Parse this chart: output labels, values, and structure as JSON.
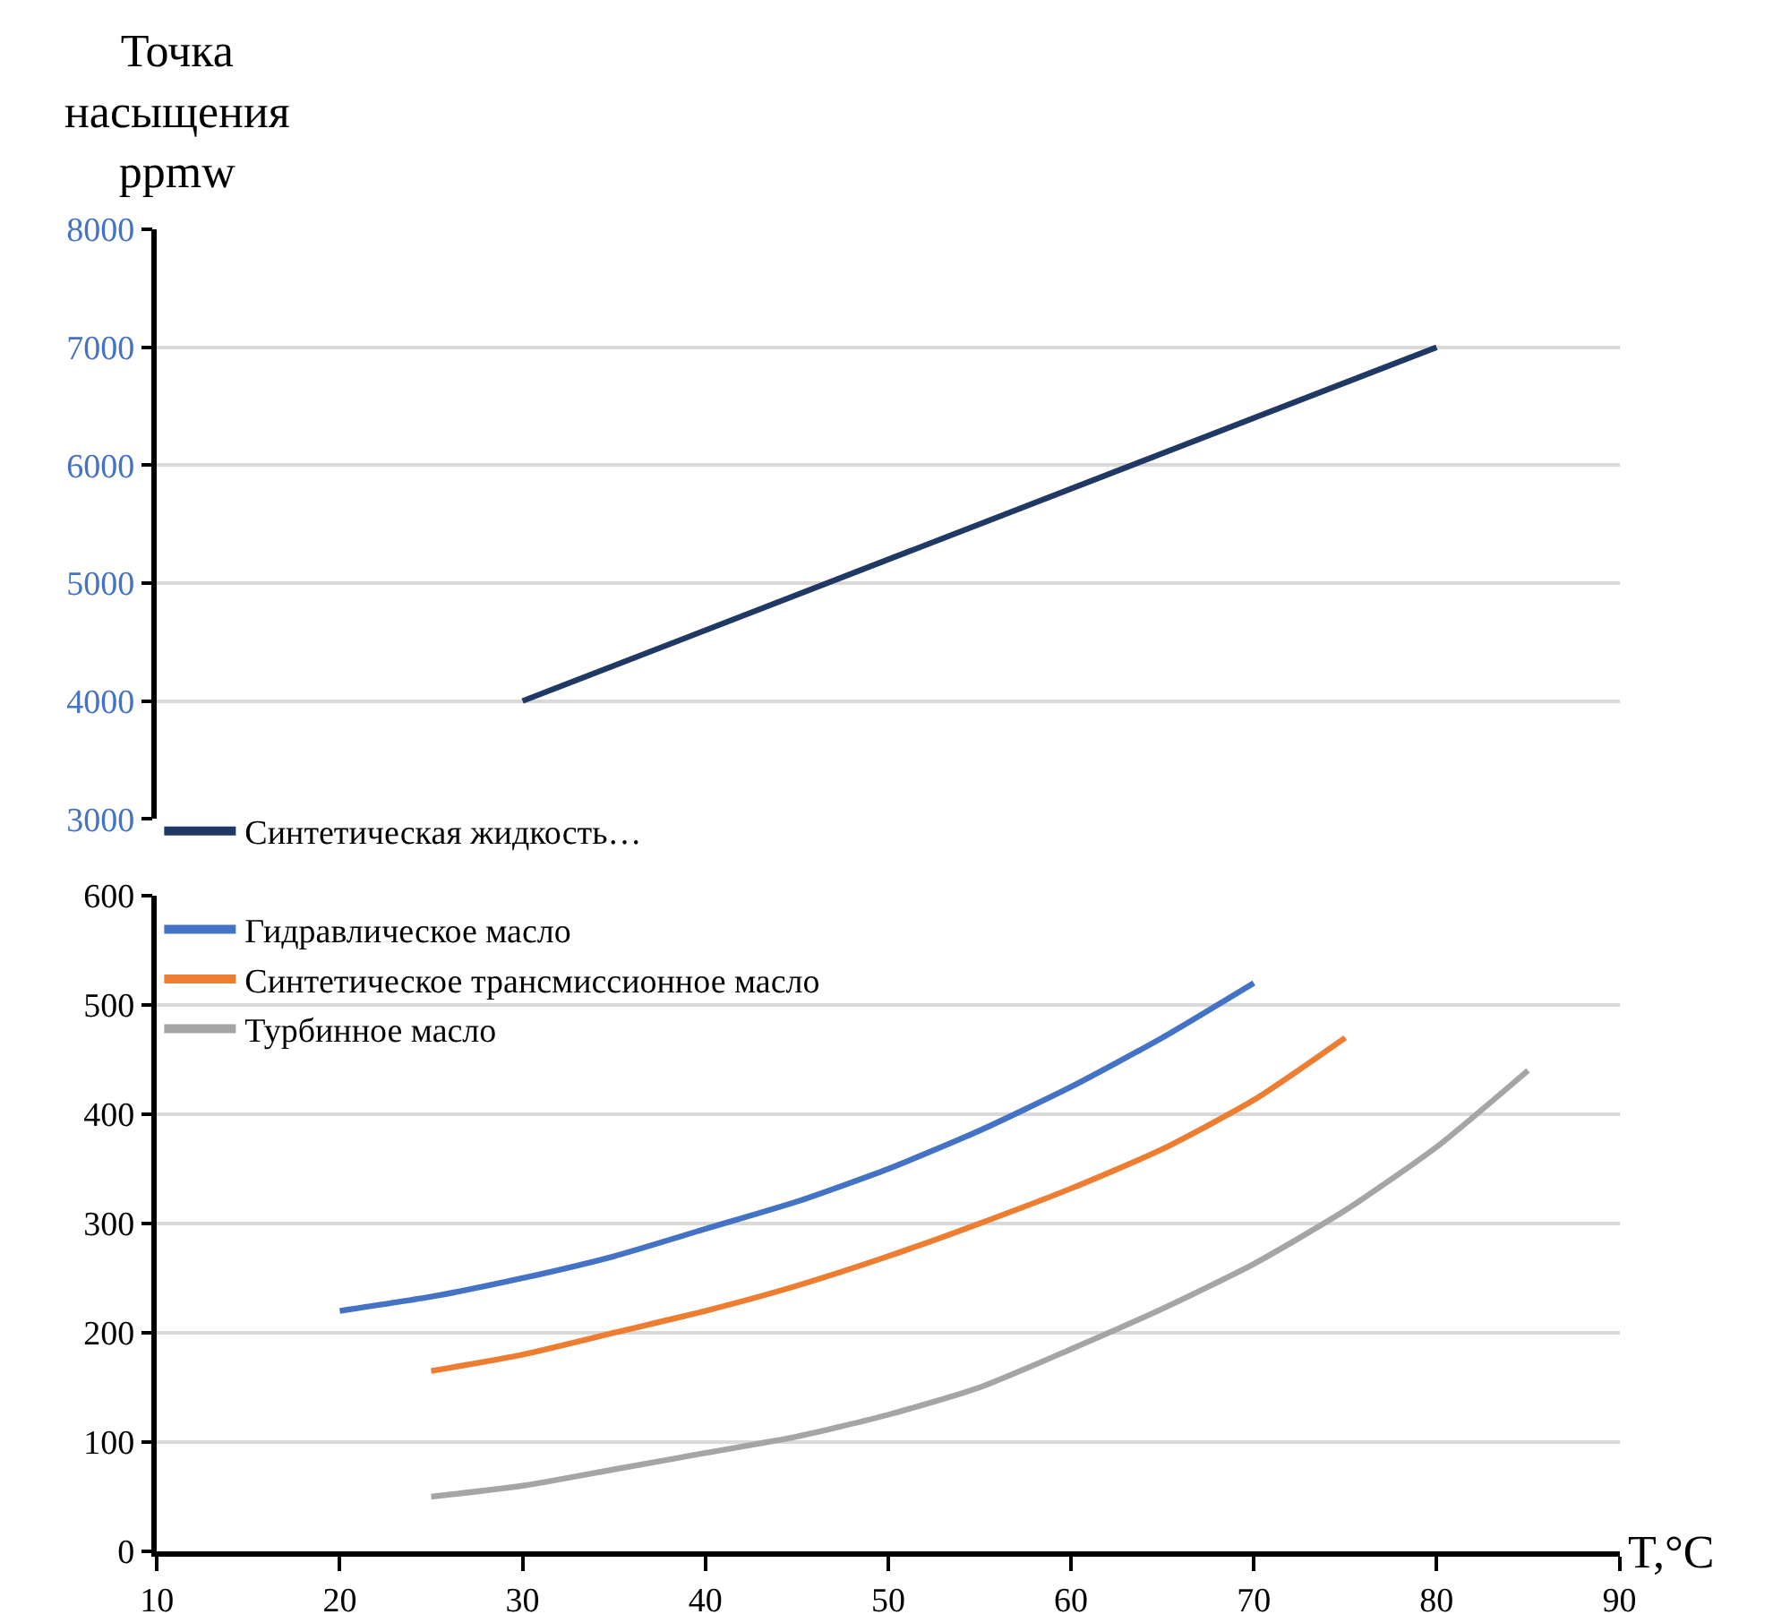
{
  "chart_data": [
    {
      "type": "line",
      "ylabel": "Точка\nнасыщения\nppmw",
      "xlim": [
        10,
        90
      ],
      "ylim": [
        3000,
        8000
      ],
      "yticks": [
        3000,
        4000,
        5000,
        6000,
        7000,
        8000
      ],
      "grid": "y",
      "legend": "bottom left",
      "tick_labels": "y",
      "marker": "none",
      "line_style": "solid",
      "series": [
        {
          "name": "Синтетическая жидкость…",
          "color": "#203864",
          "x": [
            30,
            80
          ],
          "values": [
            4000,
            7000
          ]
        }
      ]
    },
    {
      "type": "line",
      "xlabel": "T,°C",
      "xlim": [
        10,
        90
      ],
      "xticks": [
        10,
        20,
        30,
        40,
        50,
        60,
        70,
        80,
        90
      ],
      "ylim": [
        0,
        600
      ],
      "yticks": [
        0,
        100,
        200,
        300,
        400,
        500,
        600
      ],
      "grid": "y",
      "legend": "top left",
      "marker": "none",
      "line_style": "solid",
      "series": [
        {
          "name": "Гидравлическое масло",
          "color": "#4472c4",
          "x": [
            20,
            25,
            30,
            35,
            40,
            45,
            50,
            55,
            60,
            65,
            70
          ],
          "values": [
            220,
            233,
            250,
            270,
            295,
            320,
            350,
            385,
            425,
            470,
            520
          ]
        },
        {
          "name": "Синтетическое трансмиссионное масло",
          "color": "#ed7d31",
          "x": [
            25,
            30,
            35,
            40,
            45,
            50,
            55,
            60,
            65,
            70,
            75
          ],
          "values": [
            165,
            180,
            200,
            220,
            243,
            270,
            300,
            332,
            368,
            413,
            470
          ]
        },
        {
          "name": "Турбинное масло",
          "color": "#a5a5a5",
          "x": [
            25,
            30,
            35,
            40,
            45,
            50,
            55,
            60,
            65,
            70,
            75,
            80,
            85
          ],
          "values": [
            50,
            60,
            75,
            90,
            105,
            125,
            150,
            185,
            222,
            263,
            312,
            370,
            440
          ]
        }
      ]
    }
  ]
}
